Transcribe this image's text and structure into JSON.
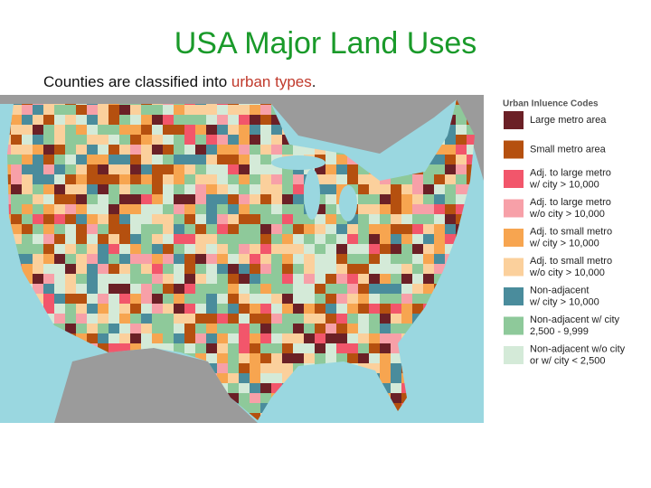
{
  "title": "USA Major Land Uses",
  "subtitle": {
    "before": "Counties are classified into ",
    "highlight": "urban types",
    "after": "."
  },
  "legend": {
    "title": "Urban Inluence Codes",
    "items": [
      {
        "lines": [
          "Large metro area"
        ],
        "color": "#6b2026"
      },
      {
        "lines": [
          "Small metro area"
        ],
        "color": "#b5500f"
      },
      {
        "lines": [
          "Adj. to large metro",
          "w/ city > 10,000"
        ],
        "color": "#f2566b"
      },
      {
        "lines": [
          "Adj. to large metro",
          "w/o city > 10,000"
        ],
        "color": "#f7a0a8"
      },
      {
        "lines": [
          "Adj. to small metro",
          "w/ city > 10,000"
        ],
        "color": "#f7a550"
      },
      {
        "lines": [
          "Adj. to small metro",
          "w/o city > 10,000"
        ],
        "color": "#fbd09c"
      },
      {
        "lines": [
          "Non-adjacent",
          "w/ city > 10,000"
        ],
        "color": "#4a8c9c"
      },
      {
        "lines": [
          "Non-adjacent w/ city",
          "2,500 - 9,999"
        ],
        "color": "#8ec99a"
      },
      {
        "lines": [
          "Non-adjacent w/o city",
          "or w/ city < 2,500"
        ],
        "color": "#d4ead8"
      }
    ]
  }
}
